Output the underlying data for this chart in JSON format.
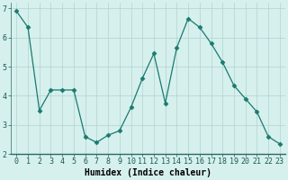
{
  "x": [
    0,
    1,
    2,
    3,
    4,
    5,
    6,
    7,
    8,
    9,
    10,
    11,
    12,
    13,
    14,
    15,
    16,
    17,
    18,
    19,
    20,
    21,
    22,
    23
  ],
  "y": [
    6.9,
    6.35,
    3.5,
    4.2,
    4.2,
    4.2,
    2.6,
    2.4,
    2.65,
    2.8,
    3.6,
    4.6,
    5.45,
    3.75,
    5.65,
    6.65,
    6.35,
    5.8,
    5.15,
    4.35,
    3.9,
    3.45,
    2.6,
    2.35
  ],
  "line_color": "#1a7a6e",
  "marker": "D",
  "marker_size": 2.5,
  "bg_color": "#d6f0ee",
  "grid_color": "#aed4d0",
  "xlabel": "Humidex (Indice chaleur)",
  "xlim": [
    -0.5,
    23.5
  ],
  "ylim": [
    2.0,
    7.2
  ],
  "yticks": [
    2,
    3,
    4,
    5,
    6,
    7
  ],
  "xticks": [
    0,
    1,
    2,
    3,
    4,
    5,
    6,
    7,
    8,
    9,
    10,
    11,
    12,
    13,
    14,
    15,
    16,
    17,
    18,
    19,
    20,
    21,
    22,
    23
  ],
  "xlabel_fontsize": 7,
  "tick_fontsize": 6,
  "bottom_color": "#3a7a6e"
}
